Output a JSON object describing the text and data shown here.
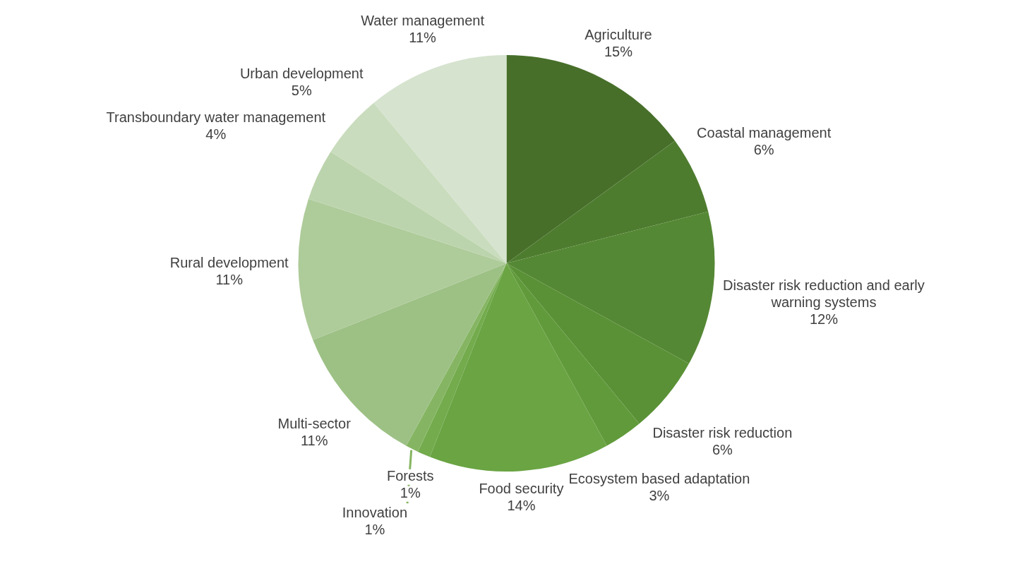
{
  "chart_data": {
    "type": "pie",
    "legend": false,
    "categories": [
      "Agriculture",
      "Coastal management",
      "Disaster risk reduction and early warning systems",
      "Disaster risk reduction",
      "Ecosystem based adaptation",
      "Food security",
      "Forests",
      "Innovation",
      "Multi-sector",
      "Rural development",
      "Transboundary water management",
      "Urban development",
      "Water management"
    ],
    "values": [
      15,
      6,
      12,
      6,
      3,
      14,
      1,
      1,
      11,
      11,
      4,
      5,
      11
    ],
    "value_labels": [
      "15%",
      "6%",
      "12%",
      "6%",
      "3%",
      "14%",
      "1%",
      "1%",
      "11%",
      "11%",
      "4%",
      "5%",
      "11%"
    ],
    "colors": [
      "#476f2a",
      "#4e7c2f",
      "#558834",
      "#5a9136",
      "#619a3b",
      "#6aa443",
      "#73ab4d",
      "#85b562",
      "#9dc185",
      "#aecb9a",
      "#bcd4ad",
      "#c9dcbd",
      "#d6e3cf"
    ]
  }
}
